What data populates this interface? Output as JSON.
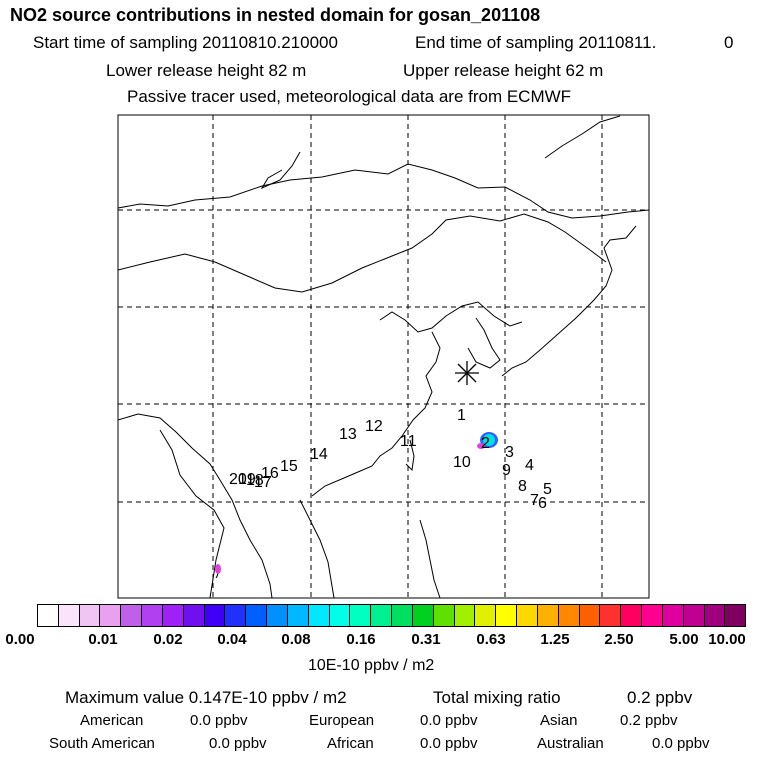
{
  "header": {
    "title": "NO2 source contributions in nested domain for gosan_201108",
    "start_label": "Start time of sampling 20110810.210000",
    "end_label": "End time of sampling 20110811.",
    "end_hour": "0",
    "lower_height": "Lower release height   82 m",
    "upper_height": "Upper release height   62 m",
    "tracer_note": "Passive tracer used, meteorological data are from ECMWF"
  },
  "map": {
    "receptor_marker": "asterisk-icon",
    "source_labels": [
      "1",
      "2",
      "3",
      "4",
      "5",
      "6",
      "7",
      "8",
      "9",
      "10",
      "11",
      "12",
      "13",
      "14",
      "15",
      "16",
      "17",
      "18",
      "19",
      "20"
    ],
    "colors": {
      "land_line": "#000000",
      "grid_line": "#000000",
      "plume_core": "#00e0e0",
      "plume_edge": "#3060ff",
      "plume_tail": "#e040e0"
    }
  },
  "colorbar": {
    "colors": [
      "#ffffff",
      "#fbe4fb",
      "#f2c4f4",
      "#e8a0ef",
      "#c060e8",
      "#b040f0",
      "#a020f8",
      "#7010f0",
      "#4000f8",
      "#2030ff",
      "#0060ff",
      "#0090ff",
      "#00b8ff",
      "#00e8ff",
      "#00ffe8",
      "#00ffc0",
      "#00f090",
      "#00e060",
      "#00d020",
      "#60e000",
      "#a0f000",
      "#e0f000",
      "#ffff00",
      "#ffd800",
      "#ffb000",
      "#ff8800",
      "#ff6000",
      "#ff3030",
      "#ff0060",
      "#ff0090",
      "#e000a0",
      "#c00090",
      "#a00080",
      "#800060"
    ],
    "ticks": [
      "0.00",
      "0.01",
      "0.02",
      "0.04",
      "0.08",
      "0.16",
      "0.31",
      "0.63",
      "1.25",
      "2.50",
      "5.00",
      "10.00"
    ],
    "units": "10E-10 ppbv / m2"
  },
  "summary": {
    "max_label": "Maximum value  0.147E-10 ppbv / m2",
    "total_label": "Total mixing ratio",
    "total_value": "0.2 ppbv",
    "regions": [
      {
        "name": "American",
        "value": "0.0 ppbv"
      },
      {
        "name": "European",
        "value": "0.0 ppbv"
      },
      {
        "name": "Asian",
        "value": "0.2 ppbv"
      },
      {
        "name": "South American",
        "value": "0.0 ppbv"
      },
      {
        "name": "African",
        "value": "0.0 ppbv"
      },
      {
        "name": "Australian",
        "value": "0.0 ppbv"
      }
    ]
  }
}
